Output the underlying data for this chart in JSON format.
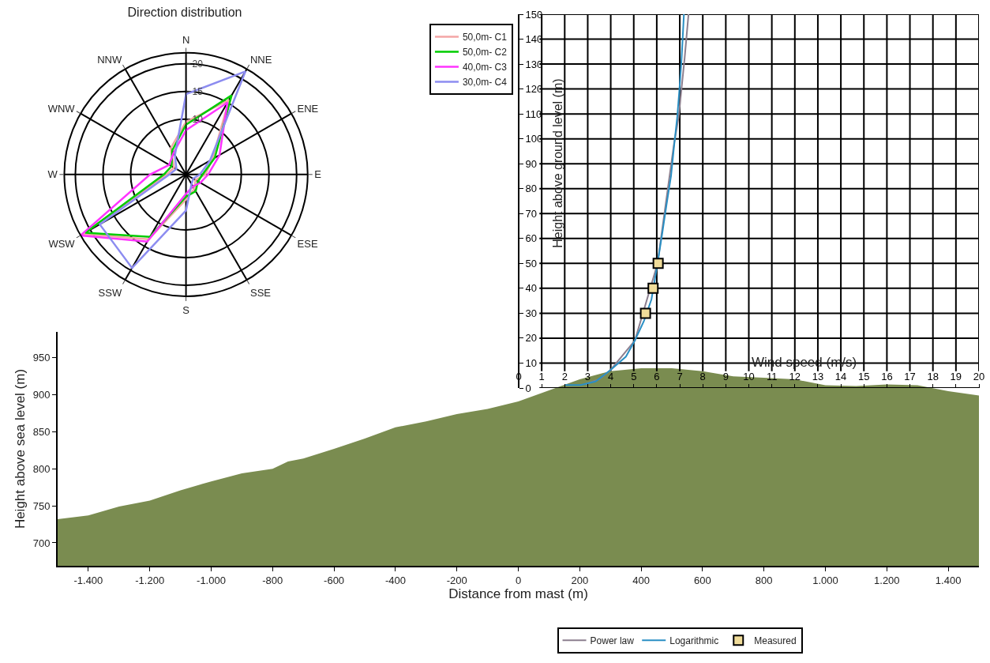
{
  "chart_data": [
    {
      "type": "radar",
      "title": "Direction distribution",
      "categories": [
        "N",
        "NNE",
        "ENE",
        "E",
        "ESE",
        "SSE",
        "S",
        "SSW",
        "WSW",
        "W",
        "WNW",
        "NNW"
      ],
      "ylim": [
        0,
        22
      ],
      "yticks": [
        10,
        15,
        20
      ],
      "grid": true,
      "legend": "top right",
      "series": [
        {
          "name": "50,0m- C1",
          "color": "#f4a6a6",
          "values": [
            9.5,
            15.5,
            5.5,
            3.5,
            2,
            3,
            4.5,
            13.5,
            21.5,
            3.5,
            2.5,
            5.5
          ]
        },
        {
          "name": "50,0m- C2",
          "color": "#00cc00",
          "values": [
            9,
            16.5,
            6,
            3,
            2.5,
            3.5,
            4,
            13,
            21,
            4,
            3,
            5
          ]
        },
        {
          "name": "40,0m- C3",
          "color": "#ff33ff",
          "values": [
            8,
            15,
            7,
            4,
            3,
            2.5,
            3.5,
            14,
            22,
            6.5,
            3.5,
            4.5
          ]
        },
        {
          "name": "30,0m- C4",
          "color": "#8c8cf0",
          "values": [
            14.5,
            21.5,
            5,
            2.5,
            1.5,
            2,
            6.5,
            19.5,
            18,
            3,
            2,
            4
          ]
        }
      ]
    },
    {
      "type": "area",
      "xlabel": "Distance from mast (m)",
      "ylabel": "Height above sea level (m)",
      "xlim": [
        -1500,
        1500
      ],
      "ylim": [
        669,
        985
      ],
      "xticks": [
        {
          "value": -1400,
          "label": "-1.400"
        },
        {
          "value": -1200,
          "label": "-1.200"
        },
        {
          "value": -1000,
          "label": "-1.000"
        },
        -800,
        -600,
        -400,
        -200,
        0,
        200,
        400,
        600,
        800,
        {
          "value": 1000,
          "label": "1.000"
        },
        {
          "value": 1200,
          "label": "1.200"
        },
        {
          "value": 1400,
          "label": "1.400"
        }
      ],
      "yticks": [
        700,
        750,
        800,
        850,
        900,
        950
      ],
      "grid": false,
      "x": [
        -1500,
        -1400,
        -1300,
        -1200,
        -1100,
        -1000,
        -900,
        -800,
        -750,
        -700,
        -600,
        -500,
        -400,
        -300,
        -200,
        -100,
        0,
        200,
        300,
        400,
        500,
        600,
        700,
        800,
        900,
        1000,
        1100,
        1200,
        1300,
        1400,
        1500
      ],
      "series": [
        {
          "color": "#7a8c50",
          "values": [
            732,
            737,
            749,
            757,
            771,
            783,
            794,
            800,
            810,
            814,
            827,
            841,
            856,
            864,
            874,
            881,
            891,
            921,
            932,
            936,
            936,
            932,
            925,
            923,
            921,
            913,
            912,
            914,
            913,
            905,
            899
          ]
        }
      ]
    },
    {
      "type": "line",
      "xlabel": "Wind speed (m/s)",
      "ylabel": "Height above ground level (m)",
      "xlim": [
        0,
        20
      ],
      "ylim": [
        0,
        150
      ],
      "xticks": [
        0,
        1,
        2,
        3,
        4,
        5,
        6,
        7,
        8,
        9,
        10,
        11,
        12,
        13,
        14,
        15,
        16,
        17,
        18,
        19,
        20
      ],
      "yticks": [
        0,
        10,
        20,
        30,
        40,
        50,
        60,
        70,
        80,
        90,
        100,
        110,
        120,
        130,
        140,
        150
      ],
      "grid": true,
      "legend": "bottom",
      "series": [
        {
          "name": "Power law",
          "color": "#8c7f8f",
          "x": [
            2.9,
            3.5,
            4.0,
            5.05,
            6.03,
            6.75,
            6.95,
            7.08,
            7.21,
            7.38
          ],
          "values": [
            1.5,
            3.5,
            7.3,
            19.1,
            49.8,
            98,
            108.7,
            120.5,
            132.3,
            150
          ]
        },
        {
          "name": "Logarithmic",
          "color": "#2a8fc4",
          "x": [
            2.03,
            2.69,
            3.34,
            4.0,
            4.66,
            5.05,
            5.44,
            5.77,
            6.03,
            6.23,
            6.42,
            6.62,
            6.75,
            6.89,
            6.99,
            7.08,
            7.18
          ],
          "values": [
            1.2,
            1.2,
            2.6,
            7.3,
            12.6,
            19.1,
            26.8,
            35.6,
            49.8,
            61.6,
            73.3,
            85.1,
            96.9,
            108.7,
            120.5,
            132.3,
            150
          ]
        },
        {
          "name": "Measured",
          "type": "scatter",
          "marker": "square",
          "color": "#f0dc9a",
          "x": [
            5.51,
            5.84,
            6.06
          ],
          "values": [
            30,
            40,
            50
          ]
        }
      ]
    }
  ]
}
